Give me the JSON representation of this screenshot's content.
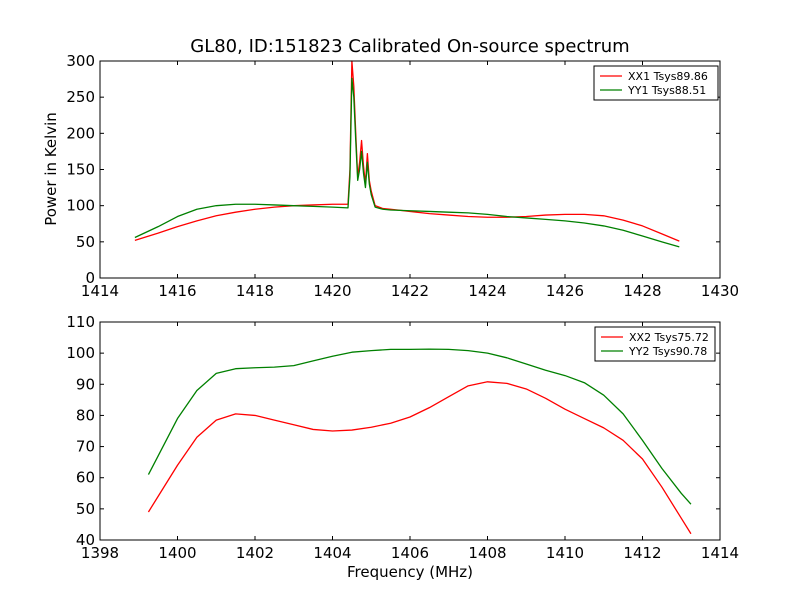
{
  "colors": {
    "xx": "#ff0000",
    "yy": "#008000",
    "axes": "#000000"
  },
  "chart_data": [
    {
      "type": "line",
      "title": "GL80, ID:151823 Calibrated On-source spectrum",
      "xlabel": "",
      "ylabel": "Power in Kelvin",
      "xlim": [
        1414,
        1430
      ],
      "ylim": [
        0,
        300
      ],
      "xticks": [
        1414,
        1416,
        1418,
        1420,
        1422,
        1424,
        1426,
        1428,
        1430
      ],
      "yticks": [
        0,
        50,
        100,
        150,
        200,
        250,
        300
      ],
      "legend_position": "top-right",
      "series": [
        {
          "name": "XX1 Tsys89.86",
          "color": "#ff0000",
          "x": [
            1414.9,
            1415.5,
            1416.0,
            1416.5,
            1417.0,
            1417.5,
            1418.0,
            1418.5,
            1419.0,
            1419.5,
            1420.0,
            1420.4,
            1420.45,
            1420.5,
            1420.55,
            1420.6,
            1420.65,
            1420.7,
            1420.75,
            1420.8,
            1420.85,
            1420.9,
            1420.95,
            1421.0,
            1421.1,
            1421.3,
            1421.5,
            1422.0,
            1422.5,
            1423.0,
            1423.5,
            1424.0,
            1424.5,
            1425.0,
            1425.5,
            1426.0,
            1426.5,
            1427.0,
            1427.5,
            1428.0,
            1428.5,
            1428.95
          ],
          "values": [
            52,
            62,
            71,
            79,
            86,
            91,
            95,
            98,
            100,
            101,
            102,
            102,
            150,
            300,
            265,
            200,
            140,
            160,
            190,
            155,
            130,
            172,
            135,
            120,
            100,
            96,
            95,
            92,
            89,
            87,
            85,
            84,
            84,
            85,
            87,
            88,
            88,
            86,
            80,
            72,
            61,
            51
          ]
        },
        {
          "name": "YY1 Tsys88.51",
          "color": "#008000",
          "x": [
            1414.9,
            1415.5,
            1416.0,
            1416.5,
            1417.0,
            1417.5,
            1418.0,
            1418.5,
            1419.0,
            1419.5,
            1420.0,
            1420.4,
            1420.45,
            1420.5,
            1420.55,
            1420.6,
            1420.65,
            1420.7,
            1420.75,
            1420.8,
            1420.85,
            1420.9,
            1420.95,
            1421.0,
            1421.1,
            1421.3,
            1421.5,
            1422.0,
            1422.5,
            1423.0,
            1423.5,
            1424.0,
            1424.5,
            1425.0,
            1425.5,
            1426.0,
            1426.5,
            1427.0,
            1427.5,
            1428.0,
            1428.5,
            1428.95
          ],
          "values": [
            56,
            71,
            85,
            95,
            100,
            102,
            102,
            101,
            100,
            99,
            98,
            97,
            140,
            276,
            250,
            190,
            135,
            150,
            175,
            145,
            125,
            160,
            130,
            115,
            98,
            95,
            94,
            93,
            92,
            91,
            90,
            88,
            85,
            83,
            81,
            79,
            76,
            72,
            66,
            58,
            50,
            43
          ]
        }
      ]
    },
    {
      "type": "line",
      "title": "",
      "xlabel": "Frequency (MHz)",
      "ylabel": "",
      "xlim": [
        1398,
        1414
      ],
      "ylim": [
        40,
        110
      ],
      "xticks": [
        1398,
        1400,
        1402,
        1404,
        1406,
        1408,
        1410,
        1412,
        1414
      ],
      "yticks": [
        40,
        50,
        60,
        70,
        80,
        90,
        100,
        110
      ],
      "legend_position": "top-right",
      "series": [
        {
          "name": "XX2 Tsys75.72",
          "color": "#ff0000",
          "x": [
            1399.25,
            1399.5,
            1400.0,
            1400.5,
            1401.0,
            1401.5,
            1402.0,
            1402.5,
            1403.0,
            1403.5,
            1404.0,
            1404.5,
            1405.0,
            1405.5,
            1406.0,
            1406.5,
            1407.0,
            1407.5,
            1408.0,
            1408.5,
            1409.0,
            1409.5,
            1410.0,
            1410.5,
            1411.0,
            1411.5,
            1412.0,
            1412.5,
            1413.0,
            1413.25
          ],
          "values": [
            49,
            54,
            64,
            73,
            78.5,
            80.5,
            80,
            78.5,
            77,
            75.5,
            75,
            75.3,
            76.2,
            77.5,
            79.5,
            82.5,
            86,
            89.5,
            90.8,
            90.3,
            88.5,
            85.5,
            82,
            79,
            76,
            72,
            66,
            57,
            47,
            42
          ]
        },
        {
          "name": "YY2 Tsys90.78",
          "color": "#008000",
          "x": [
            1399.25,
            1399.5,
            1400.0,
            1400.5,
            1401.0,
            1401.5,
            1402.0,
            1402.5,
            1403.0,
            1403.5,
            1404.0,
            1404.5,
            1405.0,
            1405.5,
            1406.0,
            1406.5,
            1407.0,
            1407.5,
            1408.0,
            1408.5,
            1409.0,
            1409.5,
            1410.0,
            1410.5,
            1411.0,
            1411.5,
            1412.0,
            1412.5,
            1413.0,
            1413.25
          ],
          "values": [
            61,
            67,
            79,
            88,
            93.5,
            95,
            95.3,
            95.5,
            96,
            97.5,
            99,
            100.3,
            100.8,
            101.2,
            101.2,
            101.3,
            101.2,
            100.8,
            100,
            98.5,
            96.5,
            94.5,
            92.8,
            90.5,
            86.5,
            80.5,
            72,
            63,
            55,
            51.5
          ]
        }
      ]
    }
  ]
}
